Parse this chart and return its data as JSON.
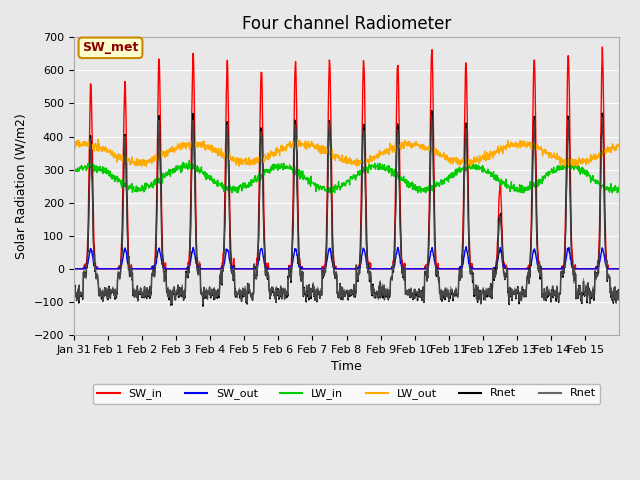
{
  "title": "Four channel Radiometer",
  "xlabel": "Time",
  "ylabel": "Solar Radiation (W/m2)",
  "ylim": [
    -200,
    700
  ],
  "yticks": [
    -200,
    -100,
    0,
    100,
    200,
    300,
    400,
    500,
    600,
    700
  ],
  "background_color": "#e8e8e8",
  "annotation_label": "SW_met",
  "annotation_bg": "#ffffcc",
  "annotation_border": "#cc8800",
  "annotation_text_color": "#8b0000",
  "x_tick_labels": [
    "Jan 31",
    "Feb 1",
    "Feb 2",
    "Feb 3",
    "Feb 4",
    "Feb 5",
    "Feb 6",
    "Feb 7",
    "Feb 8",
    "Feb 9",
    "Feb 10",
    "Feb 11",
    "Feb 12",
    "Feb 13",
    "Feb 14",
    "Feb 15"
  ],
  "day_peaks_SW_in": [
    560,
    560,
    630,
    650,
    625,
    600,
    625,
    630,
    630,
    625,
    670,
    630,
    260,
    645,
    645,
    650
  ],
  "legend_entries": [
    {
      "label": "SW_in",
      "color": "#ff0000"
    },
    {
      "label": "SW_out",
      "color": "#0000ff"
    },
    {
      "label": "LW_in",
      "color": "#00cc00"
    },
    {
      "label": "LW_out",
      "color": "#ffaa00"
    },
    {
      "label": "Rnet",
      "color": "#000000"
    },
    {
      "label": "Rnet",
      "color": "#666666"
    }
  ]
}
